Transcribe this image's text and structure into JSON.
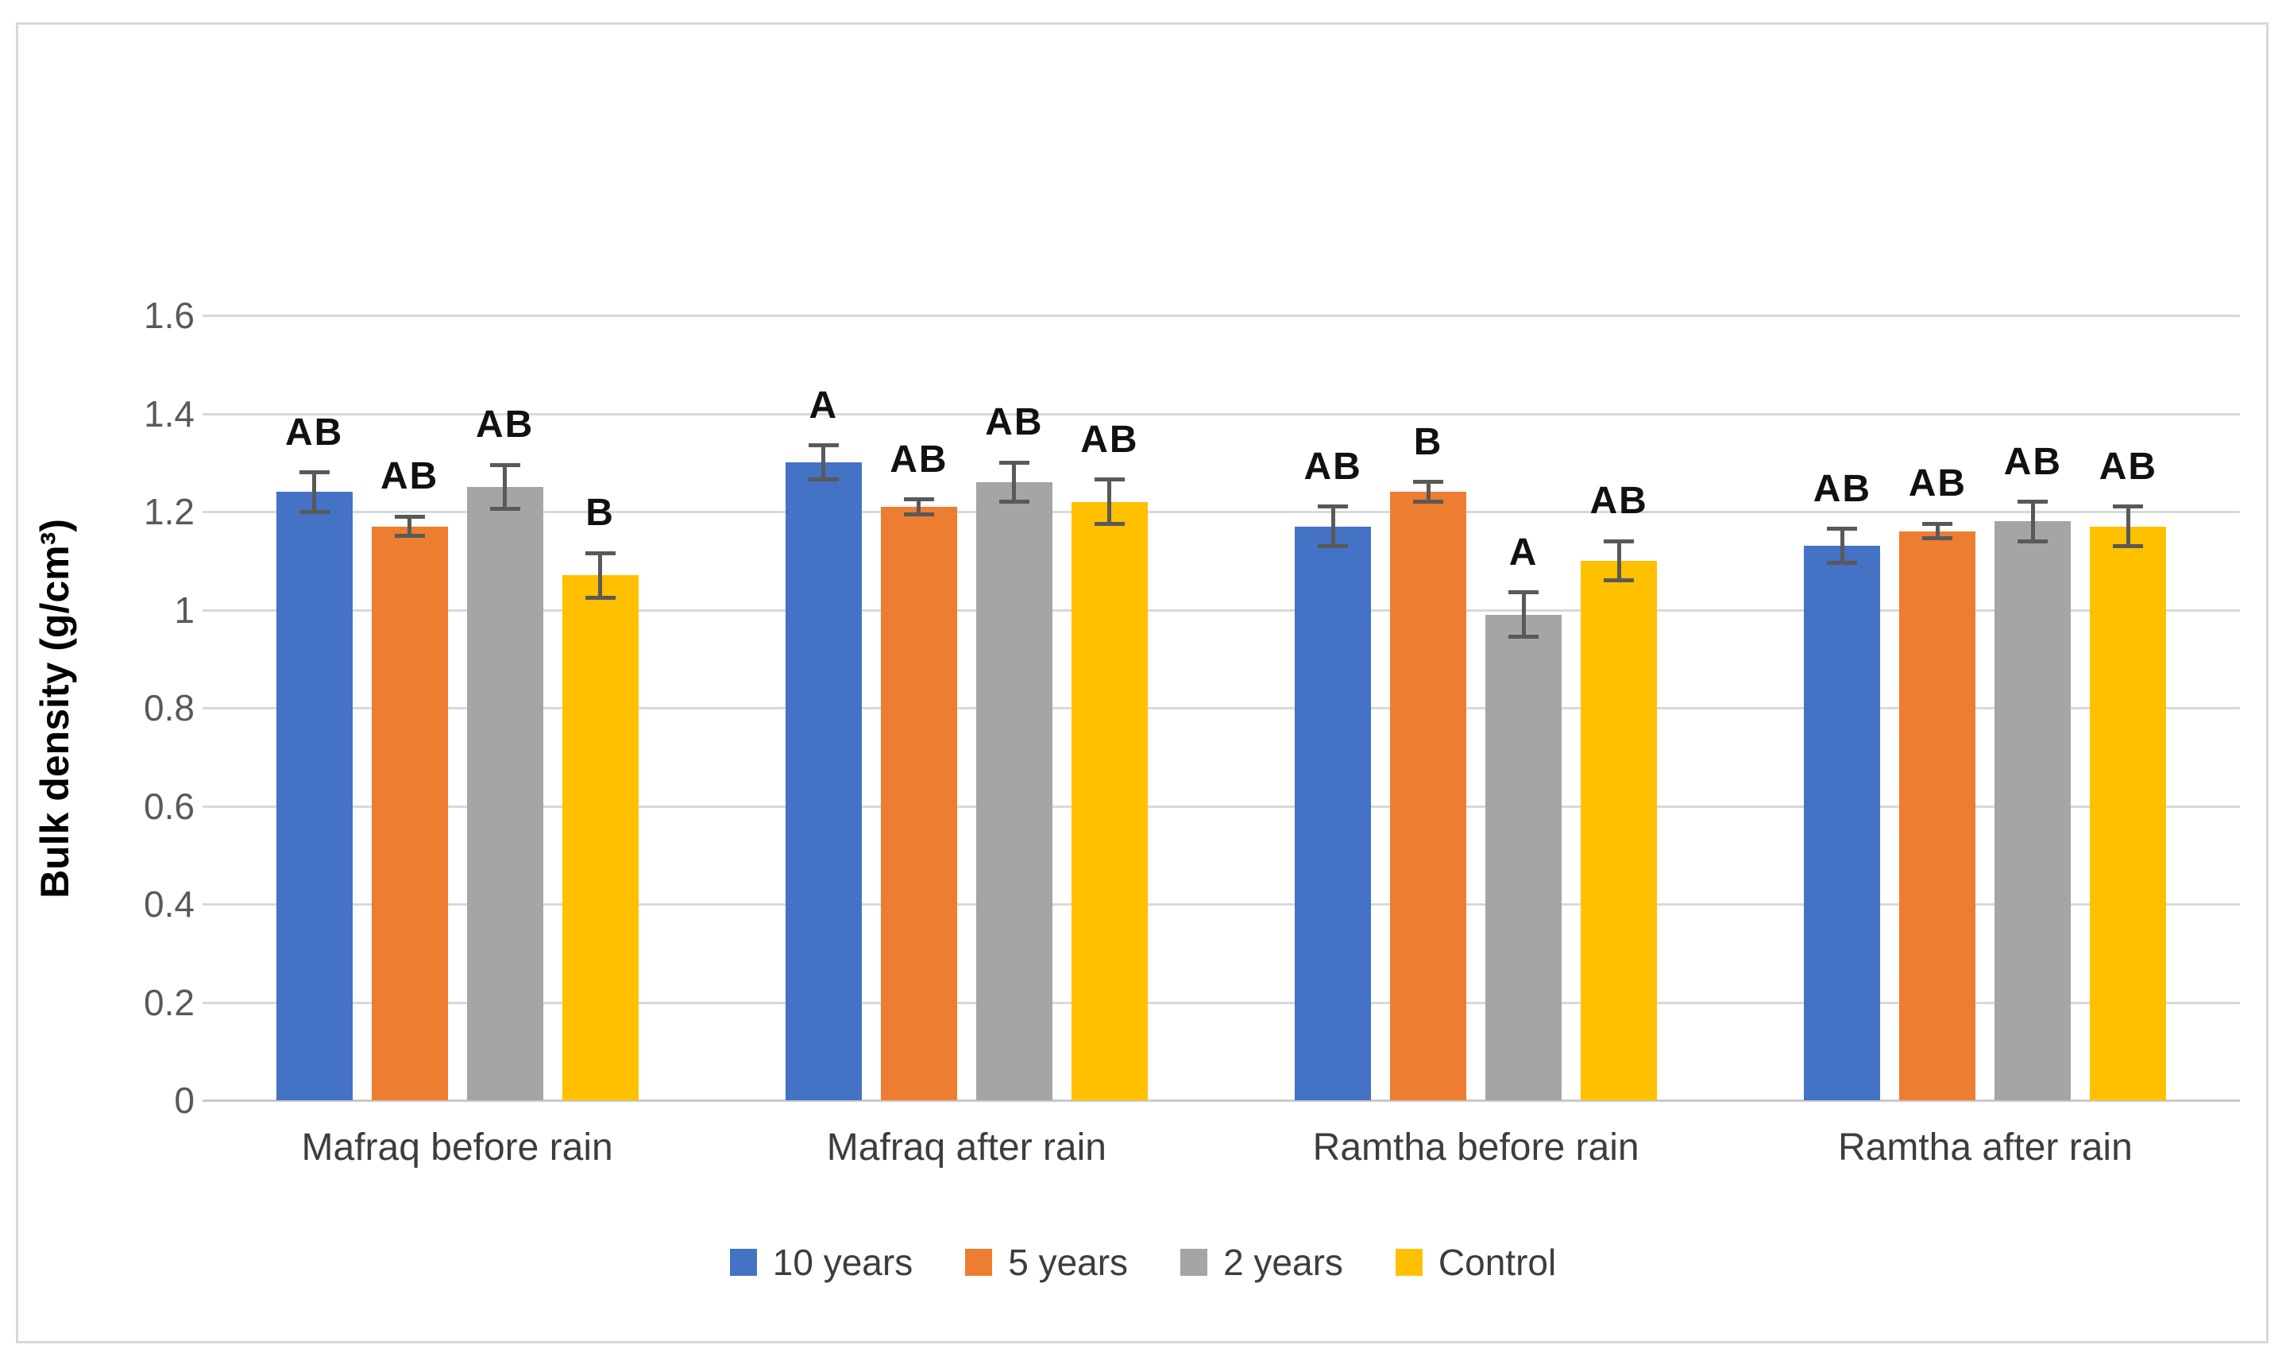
{
  "figure": {
    "background": "#FFFFFF",
    "border_color": "#D8D8D8"
  },
  "chart_data": {
    "type": "bar",
    "title": "",
    "xlabel": "",
    "ylabel": "Bulk density (g/cm³)",
    "ylim": [
      0,
      1.6
    ],
    "grid": true,
    "gridline_color": "#D9D9D9",
    "error_bar_color": "#595959",
    "legend_position": "bottom",
    "yticks": [
      {
        "value": 0,
        "label": "0"
      },
      {
        "value": 0.2,
        "label": "0.2"
      },
      {
        "value": 0.4,
        "label": "0.4"
      },
      {
        "value": 0.6,
        "label": "0.6"
      },
      {
        "value": 0.8,
        "label": "0.8"
      },
      {
        "value": 1,
        "label": "1"
      },
      {
        "value": 1.2,
        "label": "1.2"
      },
      {
        "value": 1.4,
        "label": "1.4"
      },
      {
        "value": 1.6,
        "label": "1.6"
      }
    ],
    "categories": [
      "Mafraq before rain",
      "Mafraq after rain",
      "Ramtha before rain",
      "Ramtha after rain"
    ],
    "series": [
      {
        "name": "10 years",
        "color": "#4472C4",
        "values": [
          1.24,
          1.3,
          1.17,
          1.13
        ],
        "errors": [
          0.04,
          0.035,
          0.04,
          0.035
        ],
        "letters": [
          "AB",
          "A",
          "AB",
          "AB"
        ]
      },
      {
        "name": "5 years",
        "color": "#ED7D31",
        "values": [
          1.17,
          1.21,
          1.24,
          1.16
        ],
        "errors": [
          0.02,
          0.015,
          0.02,
          0.015
        ],
        "letters": [
          "AB",
          "AB",
          "B",
          "AB"
        ]
      },
      {
        "name": "2 years",
        "color": "#A5A5A5",
        "values": [
          1.25,
          1.26,
          0.99,
          1.18
        ],
        "errors": [
          0.045,
          0.04,
          0.045,
          0.04
        ],
        "letters": [
          "AB",
          "AB",
          "A",
          "AB"
        ]
      },
      {
        "name": "Control",
        "color": "#FFC000",
        "values": [
          1.07,
          1.22,
          1.1,
          1.17
        ],
        "errors": [
          0.045,
          0.045,
          0.04,
          0.04
        ],
        "letters": [
          "B",
          "AB",
          "AB",
          "AB"
        ]
      }
    ]
  }
}
